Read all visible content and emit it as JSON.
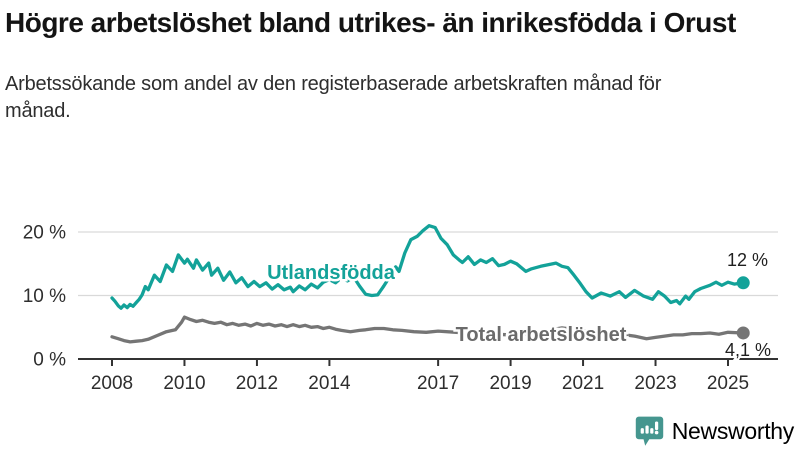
{
  "header": {
    "title": "Högre arbetslöshet bland utrikes- än inrikesfödda i Orust",
    "subtitle": "Arbetssökande som andel av den registerbaserade arbetskraften månad för månad."
  },
  "footer": {
    "brand": "Newsworthy"
  },
  "colors": {
    "accent_teal": "#13a299",
    "line_gray": "#757575",
    "label_gray": "#6b6b6b",
    "brand_teal": "#45968f",
    "grid": "#d9d9d9",
    "axis": "#333333"
  },
  "chart_data": {
    "type": "line",
    "title": "Högre arbetslöshet bland utrikes- än inrikesfödda i Orust",
    "xlabel": "",
    "ylabel": "Arbetssökande som andel av den registerbaserade arbetskraften",
    "grid": "horizontal",
    "legend_position": "inline-labels",
    "xlim": [
      2007.9,
      2025.7
    ],
    "ylim": [
      0,
      22
    ],
    "x_axis": {
      "tick_values": [
        2008,
        2010,
        2012,
        2014,
        2017,
        2019,
        2021,
        2023,
        2025
      ],
      "tick_labels": [
        "2008",
        "2010",
        "2012",
        "2014",
        "2017",
        "2019",
        "2021",
        "2023",
        "2025"
      ]
    },
    "y_axis": {
      "tick_values": [
        0,
        10,
        20
      ],
      "tick_labels": [
        "0 %",
        "10 %",
        "20 %"
      ]
    },
    "series": [
      {
        "name": "Utlandsfödda",
        "color": "#13a299",
        "end_value": 12,
        "end_label": "12 %",
        "points": [
          [
            2008.0,
            9.6
          ],
          [
            2008.08,
            9.1
          ],
          [
            2008.17,
            8.4
          ],
          [
            2008.25,
            8.0
          ],
          [
            2008.33,
            8.5
          ],
          [
            2008.42,
            8.1
          ],
          [
            2008.5,
            8.6
          ],
          [
            2008.58,
            8.3
          ],
          [
            2008.67,
            8.9
          ],
          [
            2008.75,
            9.4
          ],
          [
            2008.83,
            10.1
          ],
          [
            2008.92,
            11.4
          ],
          [
            2009.0,
            10.9
          ],
          [
            2009.17,
            13.2
          ],
          [
            2009.33,
            12.2
          ],
          [
            2009.5,
            14.8
          ],
          [
            2009.67,
            13.8
          ],
          [
            2009.83,
            16.4
          ],
          [
            2010.0,
            15.1
          ],
          [
            2010.08,
            15.7
          ],
          [
            2010.25,
            14.3
          ],
          [
            2010.33,
            15.6
          ],
          [
            2010.5,
            14.0
          ],
          [
            2010.67,
            15.1
          ],
          [
            2010.75,
            13.2
          ],
          [
            2010.92,
            14.3
          ],
          [
            2011.08,
            12.4
          ],
          [
            2011.25,
            13.7
          ],
          [
            2011.42,
            12.0
          ],
          [
            2011.58,
            12.8
          ],
          [
            2011.75,
            11.4
          ],
          [
            2011.92,
            12.2
          ],
          [
            2012.08,
            11.4
          ],
          [
            2012.25,
            12.0
          ],
          [
            2012.42,
            11.0
          ],
          [
            2012.58,
            11.7
          ],
          [
            2012.75,
            10.9
          ],
          [
            2012.92,
            11.3
          ],
          [
            2013.0,
            10.6
          ],
          [
            2013.17,
            11.5
          ],
          [
            2013.33,
            10.9
          ],
          [
            2013.5,
            11.8
          ],
          [
            2013.67,
            11.2
          ],
          [
            2013.83,
            12.1
          ],
          [
            2014.0,
            12.5
          ],
          [
            2014.17,
            12.0
          ],
          [
            2014.33,
            12.8
          ],
          [
            2014.5,
            12.3
          ],
          [
            2014.67,
            12.9
          ],
          [
            2014.83,
            11.5
          ],
          [
            2015.0,
            10.2
          ],
          [
            2015.17,
            10.0
          ],
          [
            2015.33,
            10.1
          ],
          [
            2015.5,
            11.5
          ],
          [
            2015.67,
            13.0
          ],
          [
            2015.83,
            14.5
          ],
          [
            2015.92,
            13.8
          ],
          [
            2016.08,
            16.7
          ],
          [
            2016.25,
            18.8
          ],
          [
            2016.42,
            19.3
          ],
          [
            2016.58,
            20.2
          ],
          [
            2016.75,
            21.0
          ],
          [
            2016.92,
            20.7
          ],
          [
            2017.08,
            19.0
          ],
          [
            2017.25,
            18.0
          ],
          [
            2017.42,
            16.4
          ],
          [
            2017.58,
            15.6
          ],
          [
            2017.67,
            15.2
          ],
          [
            2017.83,
            16.1
          ],
          [
            2018.0,
            14.9
          ],
          [
            2018.17,
            15.6
          ],
          [
            2018.33,
            15.2
          ],
          [
            2018.5,
            15.8
          ],
          [
            2018.67,
            14.7
          ],
          [
            2018.83,
            14.9
          ],
          [
            2019.0,
            15.4
          ],
          [
            2019.17,
            15.0
          ],
          [
            2019.42,
            13.8
          ],
          [
            2019.58,
            14.2
          ],
          [
            2019.83,
            14.6
          ],
          [
            2020.0,
            14.8
          ],
          [
            2020.25,
            15.1
          ],
          [
            2020.42,
            14.6
          ],
          [
            2020.58,
            14.4
          ],
          [
            2020.75,
            13.2
          ],
          [
            2020.92,
            11.9
          ],
          [
            2021.08,
            10.6
          ],
          [
            2021.25,
            9.6
          ],
          [
            2021.5,
            10.4
          ],
          [
            2021.75,
            9.9
          ],
          [
            2022.0,
            10.6
          ],
          [
            2022.17,
            9.7
          ],
          [
            2022.42,
            10.8
          ],
          [
            2022.67,
            9.9
          ],
          [
            2022.92,
            9.4
          ],
          [
            2023.08,
            10.6
          ],
          [
            2023.25,
            9.9
          ],
          [
            2023.42,
            8.9
          ],
          [
            2023.58,
            9.2
          ],
          [
            2023.67,
            8.7
          ],
          [
            2023.83,
            9.9
          ],
          [
            2023.92,
            9.4
          ],
          [
            2024.08,
            10.6
          ],
          [
            2024.25,
            11.1
          ],
          [
            2024.5,
            11.6
          ],
          [
            2024.67,
            12.1
          ],
          [
            2024.83,
            11.6
          ],
          [
            2025.0,
            12.1
          ],
          [
            2025.17,
            11.8
          ],
          [
            2025.42,
            12.0
          ]
        ]
      },
      {
        "name": "Total arbetslöshet",
        "color": "#757575",
        "end_value": 4.1,
        "end_label": "4,1 %",
        "points": [
          [
            2008.0,
            3.5
          ],
          [
            2008.17,
            3.2
          ],
          [
            2008.33,
            2.9
          ],
          [
            2008.5,
            2.7
          ],
          [
            2008.67,
            2.8
          ],
          [
            2008.83,
            2.9
          ],
          [
            2009.0,
            3.1
          ],
          [
            2009.25,
            3.7
          ],
          [
            2009.5,
            4.3
          ],
          [
            2009.75,
            4.6
          ],
          [
            2009.92,
            5.8
          ],
          [
            2010.0,
            6.6
          ],
          [
            2010.17,
            6.2
          ],
          [
            2010.33,
            5.9
          ],
          [
            2010.5,
            6.1
          ],
          [
            2010.67,
            5.8
          ],
          [
            2010.83,
            5.6
          ],
          [
            2011.0,
            5.8
          ],
          [
            2011.17,
            5.4
          ],
          [
            2011.33,
            5.6
          ],
          [
            2011.5,
            5.3
          ],
          [
            2011.67,
            5.5
          ],
          [
            2011.83,
            5.2
          ],
          [
            2012.0,
            5.6
          ],
          [
            2012.17,
            5.3
          ],
          [
            2012.33,
            5.5
          ],
          [
            2012.5,
            5.2
          ],
          [
            2012.67,
            5.4
          ],
          [
            2012.83,
            5.1
          ],
          [
            2013.0,
            5.4
          ],
          [
            2013.17,
            5.1
          ],
          [
            2013.33,
            5.3
          ],
          [
            2013.5,
            5.0
          ],
          [
            2013.67,
            5.1
          ],
          [
            2013.83,
            4.8
          ],
          [
            2014.0,
            5.0
          ],
          [
            2014.17,
            4.7
          ],
          [
            2014.33,
            4.5
          ],
          [
            2014.58,
            4.3
          ],
          [
            2014.83,
            4.5
          ],
          [
            2015.0,
            4.6
          ],
          [
            2015.25,
            4.8
          ],
          [
            2015.5,
            4.8
          ],
          [
            2015.75,
            4.6
          ],
          [
            2016.0,
            4.5
          ],
          [
            2016.33,
            4.3
          ],
          [
            2016.67,
            4.2
          ],
          [
            2017.0,
            4.4
          ],
          [
            2017.5,
            4.2
          ],
          [
            2018.0,
            4.0
          ],
          [
            2018.5,
            3.9
          ],
          [
            2019.0,
            3.8
          ],
          [
            2019.5,
            3.9
          ],
          [
            2020.0,
            4.5
          ],
          [
            2020.42,
            4.9
          ],
          [
            2020.83,
            4.6
          ],
          [
            2021.25,
            4.2
          ],
          [
            2021.75,
            4.0
          ],
          [
            2022.17,
            3.8
          ],
          [
            2022.42,
            3.6
          ],
          [
            2022.75,
            3.2
          ],
          [
            2023.0,
            3.4
          ],
          [
            2023.25,
            3.6
          ],
          [
            2023.5,
            3.8
          ],
          [
            2023.75,
            3.8
          ],
          [
            2024.0,
            4.0
          ],
          [
            2024.25,
            4.0
          ],
          [
            2024.5,
            4.1
          ],
          [
            2024.75,
            3.9
          ],
          [
            2025.0,
            4.2
          ],
          [
            2025.42,
            4.1
          ]
        ]
      }
    ]
  }
}
